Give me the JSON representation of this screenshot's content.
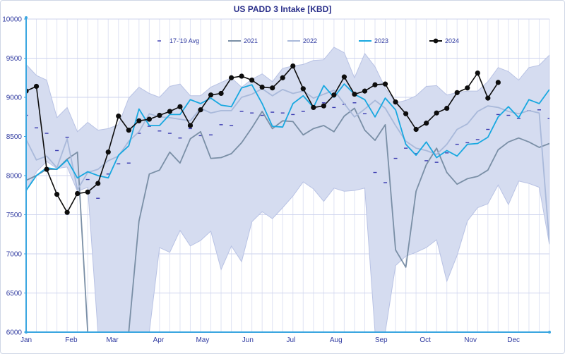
{
  "chart_data": {
    "type": "line",
    "title": "US PADD 3 Intake [KBD]",
    "xlabel": "",
    "ylabel": "",
    "ylim": [
      6000,
      10000
    ],
    "y_ticks": [
      6000,
      6500,
      7000,
      7500,
      8000,
      8500,
      9000,
      9500,
      10000
    ],
    "x_range": [
      1,
      52
    ],
    "month_ticks": [
      {
        "label": "Jan",
        "week": 1
      },
      {
        "label": "Feb",
        "week": 5.4
      },
      {
        "label": "Mar",
        "week": 9.4
      },
      {
        "label": "Apr",
        "week": 13.9
      },
      {
        "label": "May",
        "week": 18.2
      },
      {
        "label": "Jun",
        "week": 22.6
      },
      {
        "label": "Jul",
        "week": 26.8
      },
      {
        "label": "Aug",
        "week": 31.2
      },
      {
        "label": "Sep",
        "week": 35.6
      },
      {
        "label": "Oct",
        "week": 39.9
      },
      {
        "label": "Nov",
        "week": 44.3
      },
      {
        "label": "Dec",
        "week": 48.5
      }
    ],
    "grid": true,
    "legend_position": "top",
    "range_band": {
      "color": "#d5dcf0",
      "upper": [
        9420,
        9280,
        9220,
        8740,
        8870,
        8560,
        8680,
        8580,
        8600,
        8650,
        8990,
        9130,
        9050,
        9000,
        9140,
        9170,
        9020,
        9020,
        9130,
        9190,
        9250,
        9130,
        9230,
        9300,
        9200,
        9370,
        9400,
        9420,
        9470,
        9480,
        9640,
        9570,
        9250,
        9560,
        9390,
        9120,
        8930,
        8960,
        9020,
        9140,
        9150,
        9030,
        9060,
        9080,
        9080,
        9200,
        9380,
        9330,
        9220,
        9380,
        9410,
        9540
      ],
      "lower": [
        7800,
        8050,
        8180,
        8090,
        8110,
        7800,
        7850,
        6000,
        6000,
        6000,
        6000,
        6000,
        6000,
        7080,
        7020,
        7300,
        7100,
        7170,
        7290,
        6800,
        7100,
        6900,
        7410,
        7540,
        7450,
        7590,
        7740,
        7920,
        7830,
        7670,
        7840,
        7800,
        7810,
        7840,
        6000,
        6000,
        6850,
        6970,
        7020,
        7080,
        7180,
        6650,
        6980,
        7420,
        7590,
        7640,
        7880,
        7630,
        7930,
        7900,
        7850,
        7120
      ]
    },
    "series": [
      {
        "name": "17-'19 Avg",
        "color": "#3a3ab0",
        "style": "dash-marker",
        "values": [
          8770,
          8610,
          8540,
          8320,
          8490,
          7790,
          7950,
          7710,
          8020,
          8150,
          8160,
          8540,
          8630,
          8570,
          8540,
          8480,
          8600,
          8510,
          8520,
          8650,
          8640,
          8820,
          8800,
          8770,
          8810,
          8800,
          8780,
          8820,
          8870,
          8930,
          8870,
          8910,
          8930,
          8790,
          8040,
          7910,
          8220,
          8350,
          8280,
          8190,
          8170,
          8290,
          8400,
          8420,
          8460,
          8590,
          8780,
          8770,
          8730,
          8830,
          8840,
          8730
        ]
      },
      {
        "name": "2021",
        "color": "#7a8fa6",
        "style": "line",
        "values": [
          7940,
          8000,
          8080,
          8080,
          8210,
          8300,
          6000,
          6000,
          6000,
          6000,
          6000,
          7420,
          8020,
          8070,
          8300,
          8160,
          8470,
          8560,
          8220,
          8230,
          8280,
          8420,
          8610,
          8820,
          8600,
          8700,
          8690,
          8520,
          8600,
          8640,
          8560,
          8760,
          8860,
          8580,
          8450,
          8650,
          7050,
          6830,
          7800,
          8140,
          8350,
          8040,
          7890,
          7960,
          7990,
          8070,
          8330,
          8430,
          8480,
          8430,
          8360,
          8410
        ]
      },
      {
        "name": "2022",
        "color": "#a9b9da",
        "style": "line",
        "values": [
          8460,
          8200,
          8250,
          8100,
          8470,
          7820,
          8040,
          8080,
          8190,
          8250,
          8440,
          8560,
          8790,
          8750,
          8740,
          8720,
          8700,
          8860,
          8800,
          8830,
          8830,
          9000,
          9040,
          9110,
          9020,
          9100,
          9050,
          9080,
          8990,
          9040,
          9090,
          8920,
          8750,
          8850,
          8960,
          8860,
          8640,
          8440,
          8350,
          8320,
          8270,
          8400,
          8590,
          8660,
          8820,
          8890,
          8870,
          8820,
          8790,
          8830,
          8800,
          7130
        ]
      },
      {
        "name": "2023",
        "color": "#18a8e0",
        "style": "line",
        "values": [
          7810,
          8000,
          8100,
          8080,
          8200,
          7970,
          8050,
          8000,
          7970,
          8260,
          8380,
          8850,
          8640,
          8640,
          8780,
          8780,
          8970,
          8920,
          8990,
          8900,
          8880,
          9120,
          9160,
          8920,
          8630,
          8620,
          8920,
          9020,
          8870,
          9150,
          9000,
          9170,
          9040,
          8970,
          8750,
          8990,
          8840,
          8400,
          8260,
          8430,
          8230,
          8320,
          8250,
          8400,
          8410,
          8490,
          8750,
          8880,
          8740,
          8970,
          8920,
          9100
        ]
      },
      {
        "name": "2024",
        "color": "#0d0d0d",
        "style": "line-marker",
        "values": [
          9080,
          9140,
          8080,
          7760,
          7530,
          7770,
          7790,
          7900,
          8300,
          8760,
          8580,
          8700,
          8720,
          8770,
          8820,
          8880,
          8640,
          8840,
          9030,
          9050,
          9250,
          9270,
          9220,
          9130,
          9120,
          9250,
          9400,
          9110,
          8870,
          8890,
          9030,
          9260,
          9040,
          9080,
          9160,
          9170,
          8940,
          8790,
          8590,
          8670,
          8800,
          8860,
          9060,
          9120,
          9310,
          8990,
          9190
        ]
      }
    ]
  }
}
